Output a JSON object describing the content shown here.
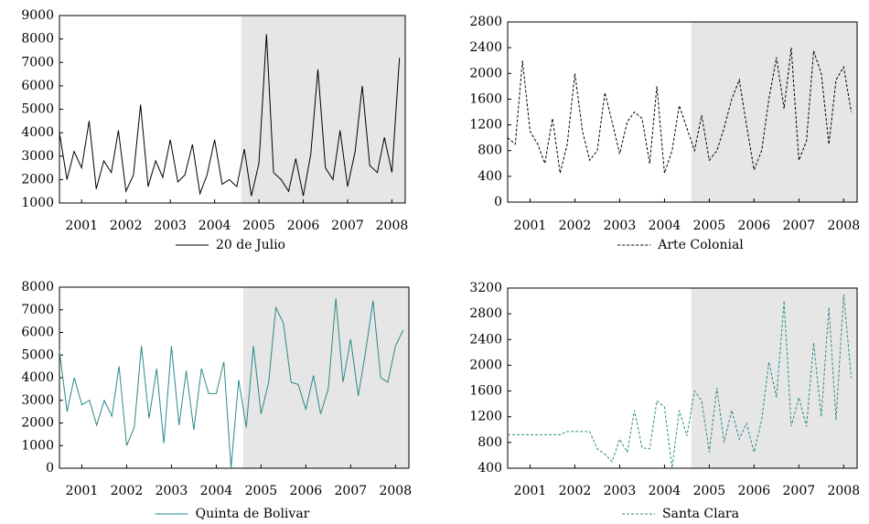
{
  "chart_data": [
    {
      "type": "line",
      "xlim": [
        2000.5,
        2008.3
      ],
      "xticks": [
        2001,
        2002,
        2003,
        2004,
        2005,
        2006,
        2007,
        2008
      ],
      "ylim": [
        1000,
        9000
      ],
      "yticks": [
        1000,
        2000,
        3000,
        4000,
        5000,
        6000,
        7000,
        8000,
        9000
      ],
      "shade": [
        2004.6,
        2008.3
      ],
      "x": [
        2000.5,
        2000.67,
        2000.83,
        2001,
        2001.17,
        2001.33,
        2001.5,
        2001.67,
        2001.83,
        2002,
        2002.17,
        2002.33,
        2002.5,
        2002.67,
        2002.83,
        2003,
        2003.17,
        2003.33,
        2003.5,
        2003.67,
        2003.83,
        2004,
        2004.17,
        2004.33,
        2004.5,
        2004.67,
        2004.83,
        2005,
        2005.17,
        2005.33,
        2005.5,
        2005.67,
        2005.83,
        2006,
        2006.17,
        2006.33,
        2006.5,
        2006.67,
        2006.83,
        2007,
        2007.17,
        2007.33,
        2007.5,
        2007.67,
        2007.83,
        2008,
        2008.17
      ],
      "series": [
        {
          "name": "20 de Julio",
          "color": "#000000",
          "linestyle": "solid",
          "values": [
            4000,
            2000,
            3200,
            2500,
            4500,
            1600,
            2800,
            2300,
            4100,
            1500,
            2200,
            5200,
            1700,
            2800,
            2100,
            3700,
            1900,
            2200,
            3500,
            1400,
            2200,
            3700,
            1800,
            2000,
            1700,
            3300,
            1300,
            2700,
            8200,
            2300,
            2000,
            1500,
            2900,
            1300,
            3100,
            6700,
            2500,
            2000,
            4100,
            1700,
            3200,
            6000,
            2600,
            2300,
            3800,
            2300,
            7200
          ]
        }
      ]
    },
    {
      "type": "line",
      "xlim": [
        2000.5,
        2008.3
      ],
      "xticks": [
        2001,
        2002,
        2003,
        2004,
        2005,
        2006,
        2007,
        2008
      ],
      "ylim": [
        0,
        2800
      ],
      "yticks": [
        0,
        400,
        800,
        1200,
        1600,
        2000,
        2400,
        2800
      ],
      "shade": [
        2004.6,
        2008.3
      ],
      "x": [
        2000.5,
        2000.67,
        2000.83,
        2001,
        2001.17,
        2001.33,
        2001.5,
        2001.67,
        2001.83,
        2002,
        2002.17,
        2002.33,
        2002.5,
        2002.67,
        2002.83,
        2003,
        2003.17,
        2003.33,
        2003.5,
        2003.67,
        2003.83,
        2004,
        2004.17,
        2004.33,
        2004.5,
        2004.67,
        2004.83,
        2005,
        2005.17,
        2005.33,
        2005.5,
        2005.67,
        2005.83,
        2006,
        2006.17,
        2006.33,
        2006.5,
        2006.67,
        2006.83,
        2007,
        2007.17,
        2007.33,
        2007.5,
        2007.67,
        2007.83,
        2008,
        2008.17
      ],
      "series": [
        {
          "name": "Arte Colonial",
          "color": "#000000",
          "linestyle": "dashed",
          "values": [
            1000,
            900,
            2200,
            1100,
            900,
            600,
            1300,
            450,
            900,
            2000,
            1100,
            650,
            800,
            1700,
            1250,
            750,
            1250,
            1400,
            1300,
            600,
            1800,
            450,
            800,
            1500,
            1150,
            800,
            1350,
            650,
            800,
            1150,
            1600,
            1900,
            1200,
            500,
            800,
            1600,
            2250,
            1450,
            2400,
            650,
            950,
            2350,
            2000,
            900,
            1900,
            2100,
            1400
          ]
        }
      ]
    },
    {
      "type": "line",
      "xlim": [
        2000.5,
        2008.3
      ],
      "xticks": [
        2001,
        2002,
        2003,
        2004,
        2005,
        2006,
        2007,
        2008
      ],
      "ylim": [
        0,
        8000
      ],
      "yticks": [
        0,
        1000,
        2000,
        3000,
        4000,
        5000,
        6000,
        7000,
        8000
      ],
      "shade": [
        2004.6,
        2008.3
      ],
      "x": [
        2000.5,
        2000.67,
        2000.83,
        2001,
        2001.17,
        2001.33,
        2001.5,
        2001.67,
        2001.83,
        2002,
        2002.17,
        2002.33,
        2002.5,
        2002.67,
        2002.83,
        2003,
        2003.17,
        2003.33,
        2003.5,
        2003.67,
        2003.83,
        2004,
        2004.17,
        2004.33,
        2004.5,
        2004.67,
        2004.83,
        2005,
        2005.17,
        2005.33,
        2005.5,
        2005.67,
        2005.83,
        2006,
        2006.17,
        2006.33,
        2006.5,
        2006.67,
        2006.83,
        2007,
        2007.17,
        2007.33,
        2007.5,
        2007.67,
        2007.83,
        2008,
        2008.17
      ],
      "series": [
        {
          "name": "Quinta de Bolivar",
          "color": "#2a8a8a",
          "linestyle": "solid",
          "values": [
            5200,
            2500,
            4000,
            2800,
            3000,
            1900,
            3000,
            2300,
            4500,
            1000,
            1800,
            5400,
            2200,
            4400,
            1100,
            5400,
            1900,
            4300,
            1700,
            4400,
            3300,
            3300,
            4700,
            0,
            3900,
            1800,
            5400,
            2400,
            3800,
            7100,
            6400,
            3800,
            3700,
            2600,
            4100,
            2400,
            3500,
            7500,
            3800,
            5700,
            3200,
            5100,
            7400,
            4000,
            3800,
            5400,
            6100
          ]
        }
      ]
    },
    {
      "type": "line",
      "xlim": [
        2000.5,
        2008.3
      ],
      "xticks": [
        2001,
        2002,
        2003,
        2004,
        2005,
        2006,
        2007,
        2008
      ],
      "ylim": [
        400,
        3200
      ],
      "yticks": [
        400,
        800,
        1200,
        1600,
        2000,
        2400,
        2800,
        3200
      ],
      "shade": [
        2004.6,
        2008.3
      ],
      "x": [
        2000.5,
        2000.67,
        2000.83,
        2001,
        2001.17,
        2001.33,
        2001.5,
        2001.67,
        2001.83,
        2002,
        2002.17,
        2002.33,
        2002.5,
        2002.67,
        2002.83,
        2003,
        2003.17,
        2003.33,
        2003.5,
        2003.67,
        2003.83,
        2004,
        2004.17,
        2004.33,
        2004.5,
        2004.67,
        2004.83,
        2005,
        2005.17,
        2005.33,
        2005.5,
        2005.67,
        2005.83,
        2006,
        2006.17,
        2006.33,
        2006.5,
        2006.67,
        2006.83,
        2007,
        2007.17,
        2007.33,
        2007.5,
        2007.67,
        2007.83,
        2008,
        2008.17
      ],
      "series": [
        {
          "name": "Santa Clara",
          "color": "#2a8a8a",
          "linestyle": "dashed",
          "values": [
            920,
            920,
            920,
            920,
            920,
            920,
            920,
            920,
            970,
            970,
            970,
            970,
            700,
            620,
            500,
            850,
            650,
            1300,
            720,
            700,
            1450,
            1350,
            400,
            1300,
            900,
            1600,
            1450,
            650,
            1650,
            800,
            1300,
            850,
            1100,
            650,
            1150,
            2050,
            1500,
            3000,
            1050,
            1500,
            1050,
            2350,
            1200,
            2900,
            1150,
            3100,
            1800
          ]
        }
      ]
    }
  ]
}
